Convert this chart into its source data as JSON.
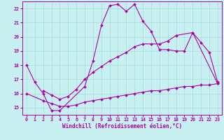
{
  "xlabel": "Windchill (Refroidissement éolien,°C)",
  "bg_color": "#c8f0f0",
  "grid_color": "#a8dada",
  "line_color": "#aa00aa",
  "xlim": [
    -0.5,
    23.5
  ],
  "ylim": [
    14.5,
    22.5
  ],
  "xticks": [
    0,
    1,
    2,
    3,
    4,
    5,
    6,
    7,
    8,
    9,
    10,
    11,
    12,
    13,
    14,
    15,
    16,
    17,
    18,
    19,
    20,
    21,
    22,
    23
  ],
  "yticks": [
    15,
    16,
    17,
    18,
    19,
    20,
    21,
    22
  ],
  "line1_x": [
    0,
    1,
    2,
    3,
    4,
    7,
    8,
    9,
    10,
    11,
    12,
    13,
    14,
    15,
    16,
    17,
    18,
    19,
    20,
    21,
    22,
    23
  ],
  "line1_y": [
    18.0,
    16.8,
    16.0,
    14.8,
    14.8,
    16.5,
    18.3,
    20.8,
    22.2,
    22.3,
    21.8,
    22.3,
    21.1,
    20.4,
    19.1,
    19.1,
    19.0,
    19.0,
    20.3,
    19.6,
    18.9,
    16.8
  ],
  "line2_x": [
    2,
    3,
    4,
    5,
    6,
    7,
    8,
    9,
    10,
    11,
    12,
    13,
    14,
    15,
    16,
    17,
    18,
    20,
    23
  ],
  "line2_y": [
    16.2,
    15.9,
    15.6,
    15.8,
    16.3,
    17.0,
    17.5,
    17.9,
    18.3,
    18.6,
    18.9,
    19.3,
    19.5,
    19.5,
    19.5,
    19.7,
    20.1,
    20.3,
    16.7
  ],
  "line3_x": [
    0,
    2,
    3,
    4,
    5,
    6,
    7,
    8,
    9,
    10,
    11,
    12,
    13,
    14,
    15,
    16,
    17,
    18,
    19,
    20,
    21,
    22,
    23
  ],
  "line3_y": [
    16.0,
    15.5,
    15.3,
    15.1,
    15.1,
    15.2,
    15.4,
    15.5,
    15.6,
    15.7,
    15.8,
    15.9,
    16.0,
    16.1,
    16.2,
    16.2,
    16.3,
    16.4,
    16.5,
    16.5,
    16.6,
    16.6,
    16.7
  ]
}
